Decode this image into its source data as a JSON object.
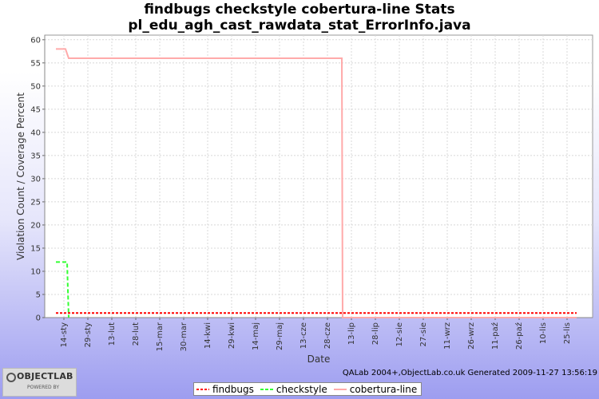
{
  "header": {
    "title": "findbugs checkstyle cobertura-line  Stats",
    "subtitle": "pl_edu_agh_cast_rawdata_stat_ErrorInfo.java"
  },
  "footer": {
    "generated": "QALab 2004+,ObjectLab.co.uk Generated 2009-11-27 13:56:19"
  },
  "logo": {
    "name": "OBJECTLAB",
    "tagline": "POWERED BY"
  },
  "legend": [
    {
      "name": "findbugs",
      "color": "#ff0000"
    },
    {
      "name": "checkstyle",
      "color": "#33ff33"
    },
    {
      "name": "cobertura-line",
      "color": "#ffaaaa"
    }
  ],
  "chart_data": {
    "type": "line",
    "xlabel": "Date",
    "ylabel": "Violation Count / Coverage Percent",
    "ylim": [
      0,
      61
    ],
    "yticks": [
      0,
      5,
      10,
      15,
      20,
      25,
      30,
      35,
      40,
      45,
      50,
      55,
      60
    ],
    "xlim": [
      0,
      330
    ],
    "x_tick_labels": [
      "14-sty",
      "29-sty",
      "13-lut",
      "28-lut",
      "15-mar",
      "30-mar",
      "14-kwi",
      "29-kwi",
      "14-maj",
      "29-maj",
      "13-cze",
      "28-cze",
      "13-lip",
      "28-lip",
      "12-sie",
      "27-sie",
      "11-wrz",
      "26-wrz",
      "11-paź",
      "26-paź",
      "10-lis",
      "25-lis"
    ],
    "grid": true,
    "legend_position": "bottom",
    "series": [
      {
        "name": "findbugs",
        "color": "#ff0000",
        "dash": "3,2",
        "points": [
          [
            0,
            1
          ],
          [
            326,
            1
          ]
        ]
      },
      {
        "name": "checkstyle",
        "color": "#33ff33",
        "dash": "5,3",
        "points": [
          [
            0,
            12
          ],
          [
            7,
            12
          ],
          [
            8,
            0
          ]
        ]
      },
      {
        "name": "cobertura-line",
        "color": "#ffaaaa",
        "dash": "",
        "points": [
          [
            0,
            58
          ],
          [
            6,
            58
          ],
          [
            8,
            56
          ],
          [
            179,
            56
          ],
          [
            179.5,
            0
          ],
          [
            326,
            0
          ]
        ]
      }
    ]
  }
}
